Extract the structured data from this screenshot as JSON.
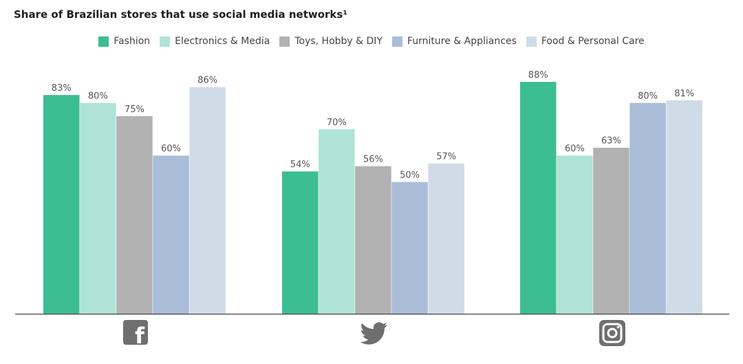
{
  "title": "Share of Brazilian stores that use social media networks¹",
  "legend": [
    {
      "label": "Fashion",
      "color": "#3dbd92"
    },
    {
      "label": "Electronics & Media",
      "color": "#afe4d6"
    },
    {
      "label": "Toys, Hobby & DIY",
      "color": "#b2b2b2"
    },
    {
      "label": "Furniture & Appliances",
      "color": "#a9bcd8"
    },
    {
      "label": "Food & Personal Care",
      "color": "#d0dbe8"
    }
  ],
  "icons": [
    {
      "name": "facebook-icon",
      "glyph": "f"
    },
    {
      "name": "twitter-icon",
      "glyph": ""
    },
    {
      "name": "instagram-icon",
      "glyph": ""
    }
  ],
  "chart_data": {
    "type": "bar",
    "title": "Share of Brazilian stores that use social media networks¹",
    "categories": [
      "Facebook",
      "Twitter",
      "Instagram"
    ],
    "series": [
      {
        "name": "Fashion",
        "color": "#3dbd92",
        "values": [
          83,
          54,
          88
        ],
        "labels": [
          "83%",
          "54%",
          "88%"
        ]
      },
      {
        "name": "Electronics & Media",
        "color": "#afe4d6",
        "values": [
          80,
          70,
          60
        ],
        "labels": [
          "80%",
          "70%",
          "60%"
        ]
      },
      {
        "name": "Toys, Hobby & DIY",
        "color": "#b2b2b2",
        "values": [
          75,
          56,
          63
        ],
        "labels": [
          "75%",
          "56%",
          "63%"
        ]
      },
      {
        "name": "Furniture & Appliances",
        "color": "#a9bcd8",
        "values": [
          60,
          50,
          80
        ],
        "labels": [
          "60%",
          "50%",
          "80%"
        ]
      },
      {
        "name": "Food & Personal Care",
        "color": "#d0dbe8",
        "values": [
          86,
          57,
          81
        ],
        "labels": [
          "86%",
          "57%",
          "81%"
        ]
      }
    ],
    "ylim": [
      0,
      100
    ],
    "grid": false,
    "legend_position": "top"
  }
}
